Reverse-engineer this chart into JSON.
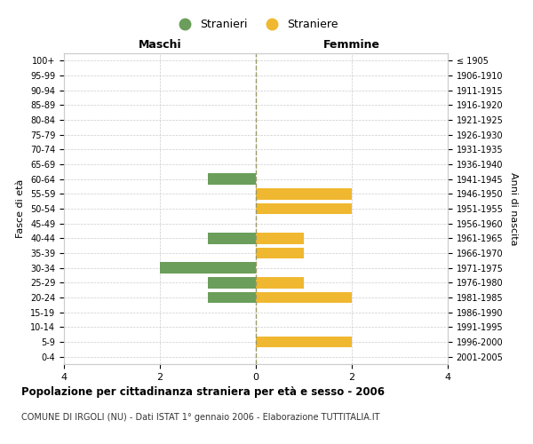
{
  "age_groups": [
    "0-4",
    "5-9",
    "10-14",
    "15-19",
    "20-24",
    "25-29",
    "30-34",
    "35-39",
    "40-44",
    "45-49",
    "50-54",
    "55-59",
    "60-64",
    "65-69",
    "70-74",
    "75-79",
    "80-84",
    "85-89",
    "90-94",
    "95-99",
    "100+"
  ],
  "birth_years": [
    "2001-2005",
    "1996-2000",
    "1991-1995",
    "1986-1990",
    "1981-1985",
    "1976-1980",
    "1971-1975",
    "1966-1970",
    "1961-1965",
    "1956-1960",
    "1951-1955",
    "1946-1950",
    "1941-1945",
    "1936-1940",
    "1931-1935",
    "1926-1930",
    "1921-1925",
    "1916-1920",
    "1911-1915",
    "1906-1910",
    "≤ 1905"
  ],
  "maschi": [
    0,
    0,
    0,
    0,
    1,
    1,
    2,
    0,
    1,
    0,
    0,
    0,
    1,
    0,
    0,
    0,
    0,
    0,
    0,
    0,
    0
  ],
  "femmine": [
    0,
    2,
    0,
    0,
    2,
    1,
    0,
    1,
    1,
    0,
    2,
    2,
    0,
    0,
    0,
    0,
    0,
    0,
    0,
    0,
    0
  ],
  "maschi_color": "#6a9e5a",
  "femmine_color": "#f0b830",
  "background_color": "#ffffff",
  "grid_color": "#cccccc",
  "title": "Popolazione per cittadinanza straniera per età e sesso - 2006",
  "subtitle": "COMUNE DI IRGOLI (NU) - Dati ISTAT 1° gennaio 2006 - Elaborazione TUTTITALIA.IT",
  "legend_maschi": "Stranieri",
  "legend_femmine": "Straniere",
  "xlabel_left": "Maschi",
  "xlabel_right": "Femmine",
  "ylabel_left": "Fasce di età",
  "ylabel_right": "Anni di nascita",
  "xlim": 4,
  "bar_height": 0.75
}
